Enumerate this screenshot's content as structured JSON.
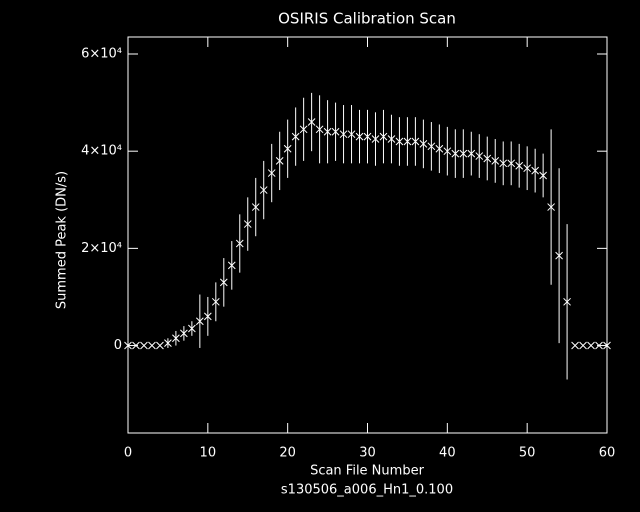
{
  "chart_data": {
    "type": "errorbar",
    "title": "OSIRIS Calibration Scan",
    "xlabel": "Scan File Number",
    "subtitle": "s130506_a006_Hn1_0.100",
    "ylabel": "Summed Peak (DN/s)",
    "color": "#ffffff",
    "x": [
      0,
      1,
      2,
      3,
      4,
      5,
      6,
      7,
      8,
      9,
      10,
      11,
      12,
      13,
      14,
      15,
      16,
      17,
      18,
      19,
      20,
      21,
      22,
      23,
      24,
      25,
      26,
      27,
      28,
      29,
      30,
      31,
      32,
      33,
      34,
      35,
      36,
      37,
      38,
      39,
      40,
      41,
      42,
      43,
      44,
      45,
      46,
      47,
      48,
      49,
      50,
      51,
      52,
      53,
      54,
      55,
      56,
      57,
      58,
      59,
      60
    ],
    "values": [
      0,
      0,
      0,
      0,
      0,
      500,
      1500,
      2500,
      3500,
      5000,
      6000,
      9000,
      13000,
      16500,
      21000,
      25000,
      28500,
      32000,
      35500,
      38000,
      40500,
      43000,
      44500,
      46000,
      44500,
      44000,
      44000,
      43500,
      43500,
      43000,
      43000,
      42500,
      43000,
      42500,
      42000,
      42000,
      42000,
      41500,
      41000,
      40500,
      40000,
      39500,
      39500,
      39500,
      39000,
      38500,
      38000,
      37500,
      37500,
      37000,
      36500,
      36000,
      35000,
      28500,
      18500,
      9000,
      0,
      0,
      0,
      0,
      0
    ],
    "errors": [
      0,
      0,
      0,
      0,
      0,
      1000,
      1500,
      1500,
      1500,
      5500,
      4000,
      4000,
      5000,
      5000,
      6000,
      5500,
      6000,
      6000,
      6000,
      6000,
      6000,
      6000,
      6500,
      6000,
      7000,
      6500,
      6000,
      6000,
      6000,
      5500,
      5500,
      5500,
      5500,
      5000,
      5000,
      5000,
      5000,
      5000,
      5000,
      5000,
      5000,
      5000,
      5000,
      4500,
      4500,
      4500,
      4500,
      4500,
      4500,
      4500,
      4500,
      4500,
      4500,
      16000,
      18000,
      16000,
      0,
      0,
      0,
      0,
      0
    ],
    "xlim": [
      0,
      60
    ],
    "xticks": [
      0,
      10,
      20,
      30,
      40,
      50,
      60
    ],
    "ylim": [
      -18000,
      63500
    ],
    "yticks": [
      0,
      {
        "value": 20000,
        "label": "2×10⁴"
      },
      {
        "value": 40000,
        "label": "4×10⁴"
      },
      {
        "value": 60000,
        "label": "6×10⁴"
      }
    ]
  }
}
